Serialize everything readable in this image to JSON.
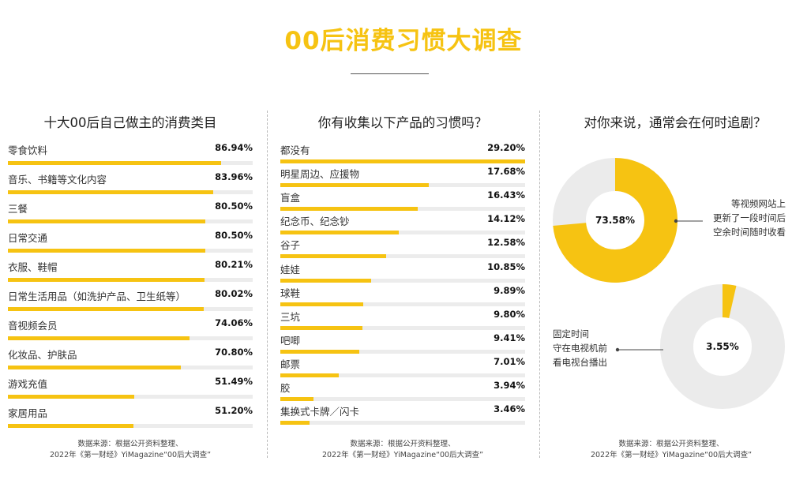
{
  "title": "00后消费习惯大调查",
  "panel1": {
    "title": "十大00后自己做主的消费类目",
    "source_line1": "数据来源：根据公开资料整理、",
    "source_line2": "2022年《第一财经》YiMagazine“00后大调查”"
  },
  "panel2": {
    "title": "你有收集以下产品的习惯吗？",
    "source_line1": "数据来源：根据公开资料整理、",
    "source_line2": "2022年《第一财经》YiMagazine“00后大调查”"
  },
  "panel3": {
    "title": "对你来说，通常会在何时追剧？",
    "donut1_label": "73.58%",
    "donut1_note": [
      "等视频网站上",
      "更新了一段时间后",
      "空余时间随时收看"
    ],
    "donut2_label": "3.55%",
    "donut2_note": [
      "固定时间",
      "守在电视机前",
      "看电视台播出"
    ],
    "source_line1": "数据来源：根据公开资料整理、",
    "source_line2": "2022年《第一财经》YiMagazine“00后大调查”"
  },
  "colors": {
    "accent": "#f6c312",
    "track": "#ececec"
  },
  "chart_data": [
    {
      "type": "bar",
      "orientation": "horizontal",
      "title": "十大00后自己做主的消费类目",
      "categories": [
        "零食饮料",
        "音乐、书籍等文化内容",
        "三餐",
        "日常交通",
        "衣服、鞋帽",
        "日常生活用品（如洗护产品、卫生纸等）",
        "音视频会员",
        "化妆品、护肤品",
        "游戏充值",
        "家居用品"
      ],
      "values": [
        86.94,
        83.96,
        80.5,
        80.5,
        80.21,
        80.02,
        74.06,
        70.8,
        51.49,
        51.2
      ],
      "value_labels": [
        "86.94%",
        "83.96%",
        "80.50%",
        "80.50%",
        "80.21%",
        "80.02%",
        "74.06%",
        "70.80%",
        "51.49%",
        "51.20%"
      ],
      "xlim": [
        0,
        100
      ]
    },
    {
      "type": "bar",
      "orientation": "horizontal",
      "title": "你有收集以下产品的习惯吗？",
      "categories": [
        "都没有",
        "明星周边、应援物",
        "盲盒",
        "纪念币、纪念钞",
        "谷子",
        "娃娃",
        "球鞋",
        "三坑",
        "吧唧",
        "邮票",
        "胶",
        "集换式卡牌／闪卡"
      ],
      "values": [
        29.2,
        17.68,
        16.43,
        14.12,
        12.58,
        10.85,
        9.89,
        9.8,
        9.41,
        7.01,
        3.94,
        3.46
      ],
      "value_labels": [
        "29.20%",
        "17.68%",
        "16.43%",
        "14.12%",
        "12.58%",
        "10.85%",
        "9.89%",
        "9.80%",
        "9.41%",
        "7.01%",
        "3.94%",
        "3.46%"
      ],
      "xlim": [
        0,
        29.2
      ]
    },
    {
      "type": "pie",
      "title": "对你来说，通常会在何时追剧？",
      "categories": [
        "等视频网站上更新了一段时间后空余时间随时收看"
      ],
      "values": [
        73.58
      ],
      "value_labels": [
        "73.58%"
      ]
    },
    {
      "type": "pie",
      "title": "对你来说，通常会在何时追剧？",
      "categories": [
        "固定时间守在电视机前看电视台播出"
      ],
      "values": [
        3.55
      ],
      "value_labels": [
        "3.55%"
      ]
    }
  ]
}
